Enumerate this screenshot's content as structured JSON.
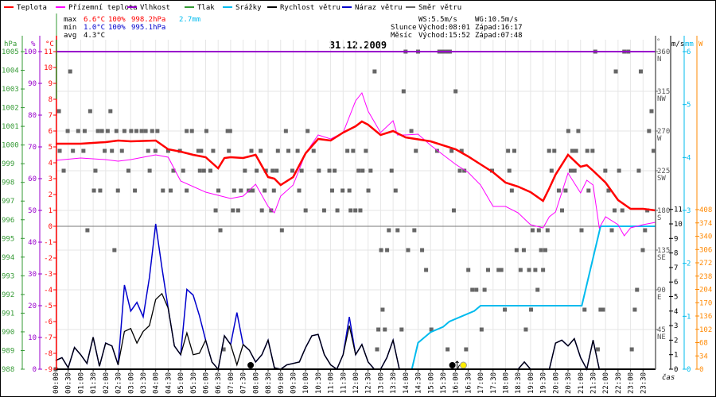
{
  "legend": [
    {
      "label": "Teplota",
      "color": "#ff0000"
    },
    {
      "label": "Přízemní teplota",
      "color": "#ff00ff"
    },
    {
      "label": "Vlhkost",
      "color": "#9900cc"
    },
    {
      "label": "Tlak",
      "color": "#339933"
    },
    {
      "label": "Srážky",
      "color": "#00bbee"
    },
    {
      "label": "Rychlost větru",
      "color": "#000000"
    },
    {
      "label": "Náraz větru",
      "color": "#0000cc"
    },
    {
      "label": "Směr větru",
      "color": "#666666"
    }
  ],
  "stats": {
    "max_label": "max",
    "min_label": "min",
    "avg_label": "avg",
    "max_temp": "6.6°C",
    "max_hum": "100%",
    "max_press": "998.2hPa",
    "max_rain": "2.7mm",
    "min_temp": "1.0°C",
    "min_hum": "100%",
    "min_press": "995.1hPa",
    "avg_temp": "4.3°C",
    "ws": "WS:5.5m/s",
    "wg": "WG:10.5m/s",
    "sun_label": "Slunce",
    "sun_rise": "Východ:08:01",
    "sun_set": "Západ:16:17",
    "moon_label": "Měsíc",
    "moon_rise": "Východ:15:52",
    "moon_set": "Západ:07:48"
  },
  "chart_data": {
    "type": "line",
    "title": "31.12.2009",
    "xlabel": "čas",
    "xlim": [
      0,
      24
    ],
    "x_ticks": [
      "00:00",
      "00:30",
      "01:00",
      "01:30",
      "02:00",
      "02:30",
      "03:00",
      "03:30",
      "04:00",
      "04:30",
      "05:00",
      "05:30",
      "06:00",
      "06:30",
      "07:00",
      "07:30",
      "08:00",
      "08:30",
      "09:00",
      "09:30",
      "10:00",
      "10:30",
      "11:00",
      "11:30",
      "12:00",
      "12:30",
      "13:00",
      "13:30",
      "14:00",
      "14:30",
      "15:00",
      "15:30",
      "16:00",
      "16:30",
      "17:00",
      "17:30",
      "18:00",
      "18:30",
      "19:00",
      "19:30",
      "20:00",
      "20:30",
      "21:00",
      "21:30",
      "22:00",
      "22:30",
      "23:00",
      "23:30"
    ],
    "axes": {
      "pressure": {
        "unit": "hPa",
        "range": [
          988,
          1005
        ],
        "ticks": [
          1005,
          1004,
          1003,
          1002,
          1001,
          1000,
          999,
          998,
          997,
          996,
          995,
          994,
          993,
          992,
          991,
          990,
          989,
          988
        ]
      },
      "humidity": {
        "unit": "%",
        "range": [
          0,
          100
        ],
        "ticks": [
          100,
          90,
          80,
          70,
          60,
          50,
          40,
          30,
          20,
          10,
          0
        ]
      },
      "temperature": {
        "unit": "°C",
        "range": [
          -9,
          11
        ],
        "ticks": [
          11,
          10,
          9,
          8,
          7,
          6,
          5,
          4,
          3,
          2,
          1,
          0,
          -1,
          -2,
          -3,
          -4,
          -5,
          -6,
          -7,
          -8,
          -9
        ]
      },
      "direction": {
        "unit": "°",
        "range": [
          0,
          360
        ],
        "ticks": [
          {
            "v": 360,
            "d": "N"
          },
          {
            "v": 315,
            "d": "NW"
          },
          {
            "v": 270,
            "d": "W"
          },
          {
            "v": 225,
            "d": "SW"
          },
          {
            "v": 180,
            "d": "S"
          },
          {
            "v": 135,
            "d": "SE"
          },
          {
            "v": 90,
            "d": "E"
          },
          {
            "v": 45,
            "d": "NE"
          }
        ]
      },
      "wind": {
        "unit": "m/s",
        "range": [
          0,
          11
        ],
        "ticks": [
          0,
          1,
          2,
          3,
          4,
          5,
          6,
          7,
          8,
          9,
          10,
          11
        ]
      },
      "rain": {
        "unit": "mm",
        "range": [
          0,
          6
        ],
        "ticks": [
          0,
          1,
          2,
          3,
          4,
          5,
          6
        ]
      },
      "radiation": {
        "unit": "W",
        "range": [
          0,
          408
        ],
        "ticks": [
          0,
          34,
          68,
          102,
          136,
          170,
          204,
          238,
          272,
          306,
          340,
          374,
          408
        ]
      }
    },
    "series": {
      "temperature": {
        "name": "Teplota",
        "t": [
          0,
          1,
          2,
          2.5,
          3,
          4,
          4.5,
          5,
          5.5,
          6,
          6.5,
          6.75,
          7,
          7.5,
          8,
          8.5,
          8.75,
          9,
          9.5,
          10,
          10.5,
          11,
          11.5,
          12,
          12.25,
          12.5,
          13,
          13.5,
          14,
          15,
          16,
          16.5,
          17,
          17.5,
          18,
          18.5,
          19,
          19.5,
          19.75,
          20,
          20.5,
          21,
          21.25,
          21.5,
          22,
          22.5,
          23,
          23.5,
          24
        ],
        "v": [
          5.2,
          5.2,
          5.3,
          5.4,
          5.35,
          5.4,
          4.85,
          4.7,
          4.5,
          4.35,
          3.65,
          4.3,
          4.35,
          4.3,
          4.5,
          3.1,
          3.0,
          2.6,
          3.1,
          4.6,
          5.5,
          5.4,
          5.9,
          6.3,
          6.6,
          6.4,
          5.75,
          6.0,
          5.6,
          5.35,
          4.85,
          4.4,
          3.9,
          3.4,
          2.75,
          2.5,
          2.15,
          1.6,
          2.4,
          3.25,
          4.5,
          3.75,
          3.85,
          3.5,
          2.75,
          1.65,
          1.1,
          1.1,
          1.0
        ]
      },
      "apparent_temperature": {
        "name": "Přízemní teplota",
        "t": [
          0,
          1,
          2,
          2.5,
          3,
          4,
          4.5,
          5,
          6,
          7,
          7.5,
          8,
          8.5,
          8.75,
          9,
          9.5,
          10,
          10.5,
          11,
          11.5,
          12,
          12.25,
          12.5,
          13,
          13.5,
          13.67,
          14,
          14.5,
          15,
          16,
          16.5,
          17,
          17.5,
          18,
          18.5,
          19,
          19.5,
          19.75,
          20,
          20.5,
          21,
          21.25,
          21.5,
          21.75,
          22,
          22.5,
          22.75,
          23,
          23.5,
          24
        ],
        "v": [
          4.15,
          4.3,
          4.2,
          4.1,
          4.2,
          4.5,
          4.35,
          2.85,
          2.15,
          1.75,
          1.9,
          2.65,
          1.25,
          0.85,
          1.9,
          2.6,
          4.6,
          5.75,
          5.5,
          5.9,
          7.9,
          8.4,
          7.25,
          5.9,
          6.65,
          5.75,
          5.75,
          5.8,
          5.1,
          3.9,
          3.4,
          2.6,
          1.25,
          1.25,
          0.85,
          0.1,
          -0.1,
          0.6,
          0.9,
          3.35,
          2.1,
          2.9,
          2.6,
          -0.1,
          0.6,
          0.1,
          -0.6,
          -0.1,
          0.1,
          0.25
        ]
      },
      "humidity": {
        "name": "Vlhkost",
        "t": [
          0,
          24
        ],
        "v": [
          100,
          100
        ]
      },
      "wind_speed": {
        "name": "Rychlost větru",
        "step_minutes": 15,
        "v": [
          0.6,
          0.8,
          0.1,
          1.5,
          1.0,
          0.4,
          2.2,
          0.2,
          1.8,
          1.6,
          0.3,
          2.6,
          2.8,
          1.8,
          2.6,
          3.0,
          4.8,
          5.2,
          4.2,
          1.6,
          1.0,
          2.5,
          1.0,
          1.1,
          2.0,
          0.5,
          0.0,
          2.3,
          1.7,
          0.3,
          1.7,
          1.3,
          0.5,
          1.0,
          2.0,
          0.1,
          0.0,
          0.3,
          0.4,
          0.5,
          1.5,
          2.3,
          2.4,
          1.0,
          0.3,
          0.0,
          1.0,
          3.0,
          1.0,
          1.7,
          0.5,
          0.0,
          0.0,
          0.8,
          2.0,
          0,
          0,
          0,
          0,
          0,
          0,
          0,
          0,
          0,
          0,
          0,
          0,
          0,
          0,
          0,
          0,
          0,
          0,
          0,
          0,
          0.5,
          0,
          0,
          0,
          0,
          1.8,
          2.0,
          1.6,
          2.1,
          0.8,
          0,
          2.0,
          0,
          0,
          0,
          0,
          0,
          0,
          0,
          0,
          0,
          0
        ]
      },
      "wind_gust": {
        "name": "Náraz větru",
        "peaks": [
          [
            2.75,
            5.8
          ],
          [
            3.0,
            4.0
          ],
          [
            3.25,
            4.6
          ],
          [
            3.5,
            3.6
          ],
          [
            3.75,
            6.3
          ],
          [
            4.0,
            10.0
          ],
          [
            4.25,
            7.0
          ],
          [
            5.25,
            5.5
          ],
          [
            5.5,
            5.1
          ],
          [
            5.75,
            3.7
          ],
          [
            7.25,
            3.9
          ],
          [
            11.75,
            3.6
          ]
        ]
      },
      "rain_cumulative": {
        "name": "Srážky",
        "t": [
          0,
          14.25,
          14.5,
          14.75,
          15,
          15.5,
          15.75,
          16.25,
          16.75,
          17,
          21.05,
          21.8,
          24
        ],
        "v": [
          0,
          0,
          0.5,
          0.6,
          0.7,
          0.8,
          0.9,
          1.0,
          1.1,
          1.2,
          1.2,
          2.7,
          2.7
        ]
      },
      "wind_direction": {
        "name": "Směr větru",
        "type": "scatter",
        "groups": [
          {
            "deg": 360,
            "t": [
              14.0,
              14.5,
              15.35,
              15.5,
              15.66,
              15.77,
              21.59,
              22.75,
              22.91
            ]
          },
          {
            "deg": 337.5,
            "t": [
              0.58,
              12.76,
              22.41,
              23.41
            ]
          },
          {
            "deg": 315,
            "t": [
              13.92,
              16.0
            ]
          },
          {
            "deg": 292.5,
            "t": [
              0.13,
              1.38,
              2.19,
              23.84
            ]
          },
          {
            "deg": 270,
            "t": [
              0.48,
              0.9,
              1.16,
              1.69,
              1.85,
              2.08,
              2.43,
              2.75,
              3.02,
              3.23,
              3.44,
              3.6,
              3.86,
              4.07,
              5.24,
              5.45,
              6.03,
              6.88,
              6.98,
              9.21,
              10.08,
              14.23,
              20.51,
              20.91,
              23.74
            ]
          },
          {
            "deg": 247.5,
            "t": [
              0.16,
              0.69,
              1.11,
              1.96,
              2.25,
              2.65,
              3.7,
              3.99,
              4.5,
              4.97,
              5.71,
              5.82,
              6.3,
              6.93,
              7.83,
              8.2,
              8.89,
              9.31,
              9.68,
              10.32,
              11.67,
              11.9,
              12.41,
              14.41,
              15.26,
              15.84,
              16.24,
              18.1,
              18.35,
              19.74,
              19.95,
              20.67,
              20.82,
              21.27,
              21.48,
              23.92
            ]
          },
          {
            "deg": 225,
            "t": [
              0.32,
              1.59,
              2.91,
              3.76,
              4.71,
              5.1,
              5.77,
              5.93,
              6.19,
              7.57,
              8.04,
              8.41,
              8.68,
              8.84,
              9.47,
              9.84,
              10.53,
              10.95,
              11.16,
              12.12,
              12.28,
              12.6,
              13.44,
              16.17,
              16.35,
              17.46,
              18.15,
              19.84,
              20.61,
              20.76,
              21.99,
              22.54,
              23.33
            ]
          },
          {
            "deg": 202.5,
            "t": [
              1.53,
              1.78,
              2.49,
              3.17,
              4.29,
              4.6,
              5.24,
              6.51,
              7.14,
              7.41,
              7.72,
              7.88,
              8.36,
              8.73,
              9.74,
              11.06,
              11.48,
              11.75,
              12.51,
              13.6,
              18.25,
              20.13,
              20.4,
              21.32,
              22.12
            ]
          },
          {
            "deg": 180,
            "t": [
              6.4,
              7.09,
              7.3,
              8.25,
              8.62,
              10.0,
              10.74,
              11.27,
              11.8,
              11.99,
              12.19,
              15.93,
              20.26,
              22.36,
              22.67,
              23.67
            ]
          },
          {
            "deg": 157.5,
            "t": [
              1.27,
              6.59,
              9.05,
              13.33,
              13.68,
              14.35,
              19.08,
              19.33,
              19.68,
              21.04,
              22.25,
              23.58
            ]
          },
          {
            "deg": 135,
            "t": [
              2.35,
              13.02,
              13.26,
              14.1,
              14.66,
              18.44,
              18.73,
              19.42,
              19.59,
              23.49
            ]
          },
          {
            "deg": 112.5,
            "t": [
              14.82,
              16.51,
              17.3,
              17.72,
              17.83,
              18.6,
              18.94,
              19.19,
              19.5
            ]
          },
          {
            "deg": 90,
            "t": [
              16.67,
              16.83,
              17.16,
              19.28,
              23.26
            ]
          },
          {
            "deg": 67.5,
            "t": [
              13.08,
              17.97,
              19.02,
              21.16,
              21.8,
              21.9,
              23.17
            ]
          },
          {
            "deg": 45,
            "t": [
              12.91,
              13.17,
              13.84,
              15.03,
              17.04,
              18.81
            ]
          },
          {
            "deg": 22.5,
            "t": [
              6.72,
              12.86,
              15.68,
              16.42,
              21.69,
              23.05
            ]
          },
          {
            "deg": 0,
            "t": [
              0
            ]
          }
        ]
      }
    },
    "events": [
      {
        "name": "moon-set",
        "t": 7.8
      },
      {
        "name": "moon-rise",
        "t": 15.87
      },
      {
        "name": "sun-set",
        "t": 16.28
      }
    ],
    "colors": {
      "grid": "#e6e6e6",
      "zero": "#777777",
      "direction": "#666666",
      "pressure": "#339933",
      "humidity": "#9900cc",
      "temperature": "#ff0000",
      "apparent": "#ff00ff",
      "rain": "#00bbee",
      "wind": "#000000",
      "gust": "#0000cc",
      "radiation": "#ff8800"
    }
  }
}
